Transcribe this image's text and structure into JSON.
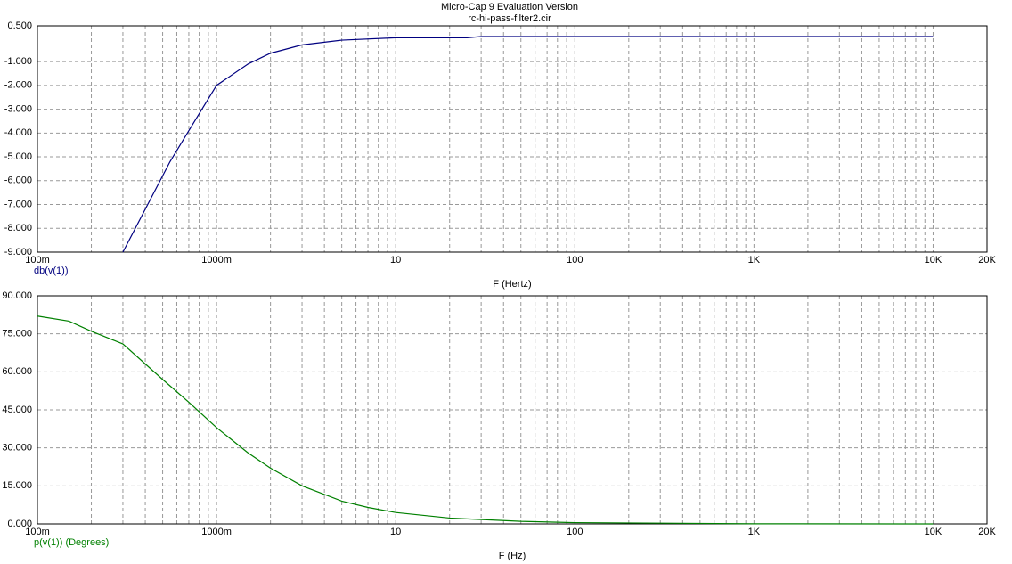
{
  "header": {
    "title": "Micro-Cap 9 Evaluation Version",
    "subtitle": "rc-hi-pass-filter2.cir"
  },
  "chart_data": [
    {
      "type": "line",
      "xlabel": "F (Hertz)",
      "log_x": true,
      "grid": true,
      "x": [
        0.3,
        0.55,
        0.7,
        1,
        1.5,
        2,
        3,
        5,
        10,
        25,
        30,
        100,
        1000,
        10000
      ],
      "series": [
        {
          "name": "db(v(1))",
          "color": "#000080",
          "values": [
            -9.0,
            -5.2,
            -3.9,
            -2.0,
            -1.1,
            -0.65,
            -0.3,
            -0.1,
            0.0,
            0.0,
            0.05,
            0.05,
            0.05,
            0.05
          ]
        }
      ],
      "xlim": [
        0.1,
        20000
      ],
      "xticks": [
        {
          "value": 0.1,
          "label": "100m"
        },
        {
          "value": 1,
          "label": "1000m"
        },
        10,
        100,
        {
          "value": 1000,
          "label": "1K"
        },
        {
          "value": 10000,
          "label": "10K"
        },
        {
          "value": 20000,
          "label": "20K"
        }
      ],
      "ylim": [
        -9,
        0.5
      ],
      "yticks": [
        {
          "value": 0.5,
          "label": "0.500"
        },
        {
          "value": -1,
          "label": "-1.000"
        },
        {
          "value": -2,
          "label": "-2.000"
        },
        {
          "value": -3,
          "label": "-3.000"
        },
        {
          "value": -4,
          "label": "-4.000"
        },
        {
          "value": -5,
          "label": "-5.000"
        },
        {
          "value": -6,
          "label": "-6.000"
        },
        {
          "value": -7,
          "label": "-7.000"
        },
        {
          "value": -8,
          "label": "-8.000"
        },
        {
          "value": -9,
          "label": "-9.000"
        }
      ]
    },
    {
      "type": "line",
      "xlabel": "F (Hz)",
      "log_x": true,
      "grid": true,
      "x": [
        0.1,
        0.15,
        0.2,
        0.3,
        0.5,
        0.7,
        1,
        1.5,
        2,
        3,
        5,
        7,
        10,
        20,
        50,
        100,
        1000,
        10000
      ],
      "series": [
        {
          "name": "p(v(1)) (Degrees)",
          "color": "#008000",
          "values": [
            82,
            80,
            76,
            71,
            57,
            48,
            38,
            28,
            22,
            15,
            9,
            6.5,
            4.5,
            2.3,
            1,
            0.5,
            0.05,
            0
          ]
        }
      ],
      "xlim": [
        0.1,
        20000
      ],
      "xticks": [
        {
          "value": 0.1,
          "label": "100m"
        },
        {
          "value": 1,
          "label": "1000m"
        },
        10,
        100,
        {
          "value": 1000,
          "label": "1K"
        },
        {
          "value": 10000,
          "label": "10K"
        },
        {
          "value": 20000,
          "label": "20K"
        }
      ],
      "ylim": [
        0,
        90
      ],
      "yticks": [
        {
          "value": 0,
          "label": "0.000"
        },
        {
          "value": 15,
          "label": "15.000"
        },
        {
          "value": 30,
          "label": "30.000"
        },
        {
          "value": 45,
          "label": "45.000"
        },
        {
          "value": 60,
          "label": "60.000"
        },
        {
          "value": 75,
          "label": "75.000"
        },
        {
          "value": 90,
          "label": "90.000"
        }
      ]
    }
  ]
}
